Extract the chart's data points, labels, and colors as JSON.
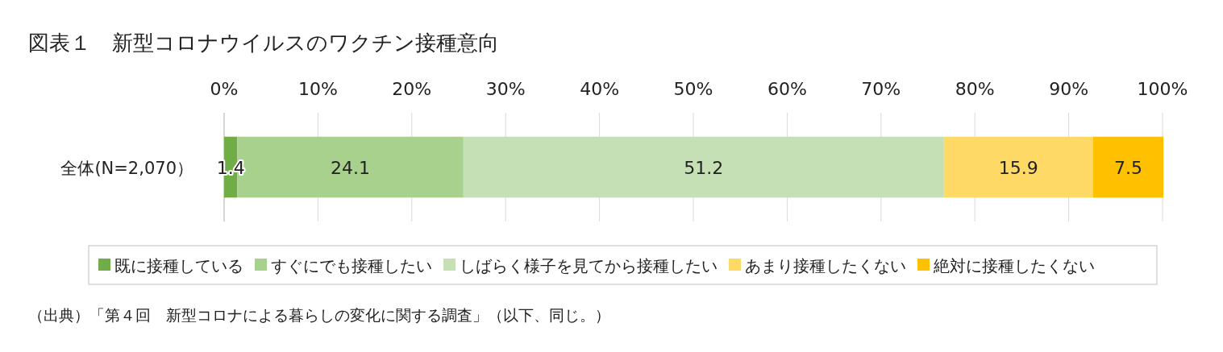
{
  "chart_data": {
    "type": "bar",
    "title": "図表１　新型コロナウイルスのワクチン接種意向",
    "orientation": "horizontal",
    "stacked": true,
    "categories": [
      "全体(N=2,070）"
    ],
    "series": [
      {
        "name": "既に接種している",
        "color": "#70ad47",
        "values": [
          1.4
        ]
      },
      {
        "name": "すぐにでも接種したい",
        "color": "#a9d18e",
        "values": [
          24.1
        ]
      },
      {
        "name": "しばらく様子を見てから接種したい",
        "color": "#c5e0b4",
        "values": [
          51.2
        ]
      },
      {
        "name": "あまり接種したくない",
        "color": "#ffd966",
        "values": [
          15.9
        ]
      },
      {
        "name": "絶対に接種したくない",
        "color": "#ffc000",
        "values": [
          7.5
        ]
      }
    ],
    "xlim": [
      0,
      100
    ],
    "xticks": [
      {
        "value": 0,
        "label": "0%"
      },
      {
        "value": 10,
        "label": "10%"
      },
      {
        "value": 20,
        "label": "20%"
      },
      {
        "value": 30,
        "label": "30%"
      },
      {
        "value": 40,
        "label": "40%"
      },
      {
        "value": 50,
        "label": "50%"
      },
      {
        "value": 60,
        "label": "60%"
      },
      {
        "value": 70,
        "label": "70%"
      },
      {
        "value": 80,
        "label": "80%"
      },
      {
        "value": 90,
        "label": "90%"
      },
      {
        "value": 100,
        "label": "100%"
      }
    ],
    "grid": "x",
    "legend": "bottom",
    "data_labels": true,
    "annotations": [
      "（出典）「第４回　新型コロナによる暮らしの変化に関する調査」（以下、同じ。）"
    ]
  }
}
